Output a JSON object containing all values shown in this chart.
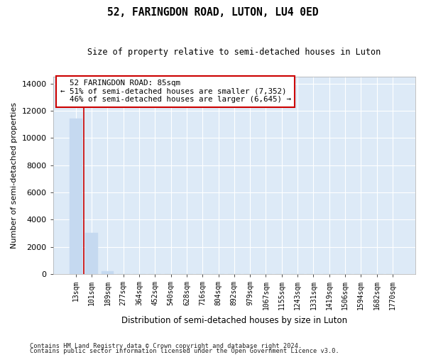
{
  "title": "52, FARINGDON ROAD, LUTON, LU4 0ED",
  "subtitle": "Size of property relative to semi-detached houses in Luton",
  "xlabel": "Distribution of semi-detached houses by size in Luton",
  "ylabel": "Number of semi-detached properties",
  "bar_color": "#c5d9f0",
  "bar_edge_color": "#c5d9f0",
  "categories": [
    "13sqm",
    "101sqm",
    "189sqm",
    "277sqm",
    "364sqm",
    "452sqm",
    "540sqm",
    "628sqm",
    "716sqm",
    "804sqm",
    "892sqm",
    "979sqm",
    "1067sqm",
    "1155sqm",
    "1243sqm",
    "1331sqm",
    "1419sqm",
    "1506sqm",
    "1594sqm",
    "1682sqm",
    "1770sqm"
  ],
  "values": [
    11400,
    3020,
    210,
    0,
    0,
    0,
    0,
    0,
    0,
    0,
    0,
    0,
    0,
    0,
    0,
    0,
    0,
    0,
    0,
    0,
    0
  ],
  "ylim": [
    0,
    14500
  ],
  "yticks": [
    0,
    2000,
    4000,
    6000,
    8000,
    10000,
    12000,
    14000
  ],
  "property_label": "52 FARINGDON ROAD: 85sqm",
  "pct_smaller": 51,
  "n_smaller": 7352,
  "pct_larger": 46,
  "n_larger": 6645,
  "annotation_box_color": "#ffffff",
  "annotation_box_edgecolor": "#cc0000",
  "marker_line_color": "#cc0000",
  "background_color": "#ddeaf7",
  "grid_color": "#ffffff",
  "footer_line1": "Contains HM Land Registry data © Crown copyright and database right 2024.",
  "footer_line2": "Contains public sector information licensed under the Open Government Licence v3.0."
}
